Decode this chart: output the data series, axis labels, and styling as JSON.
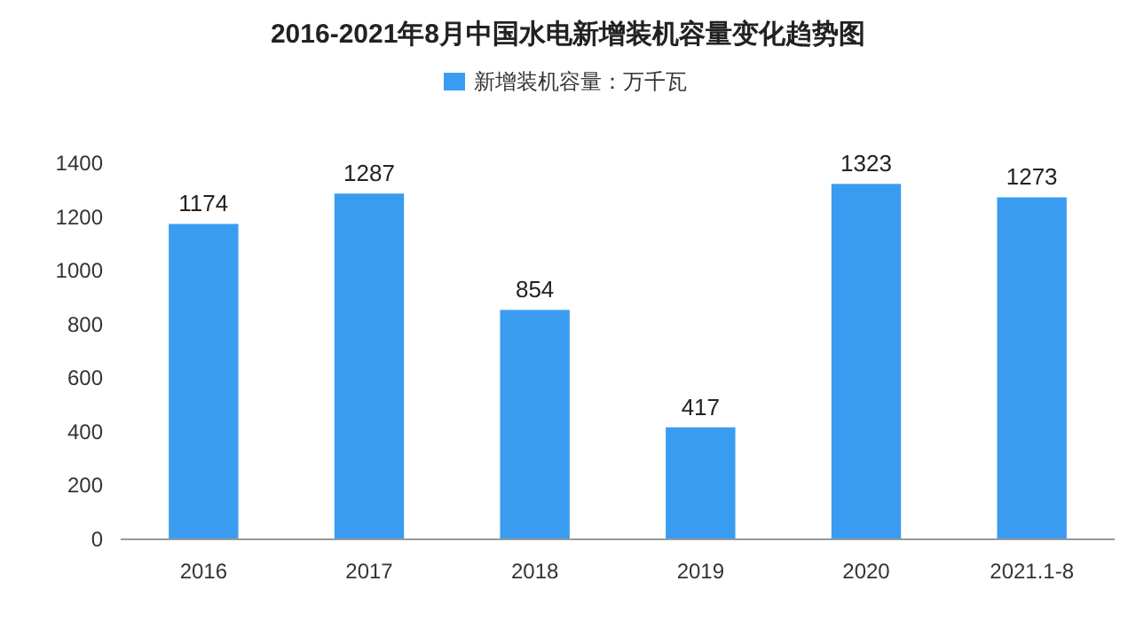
{
  "chart_data": {
    "type": "bar",
    "title": "2016-2021年8月中国水电新增装机容量变化趋势图",
    "categories": [
      "2016",
      "2017",
      "2018",
      "2019",
      "2020",
      "2021.1-8"
    ],
    "series": [
      {
        "name": "新增装机容量：万千瓦",
        "color": "#3a9cf0",
        "values": [
          1174,
          1287,
          854,
          417,
          1323,
          1273
        ]
      }
    ],
    "ylim": [
      0,
      1400
    ],
    "yticks": [
      0,
      200,
      400,
      600,
      800,
      1000,
      1200,
      1400
    ],
    "data_labels": true,
    "legend": "top"
  }
}
